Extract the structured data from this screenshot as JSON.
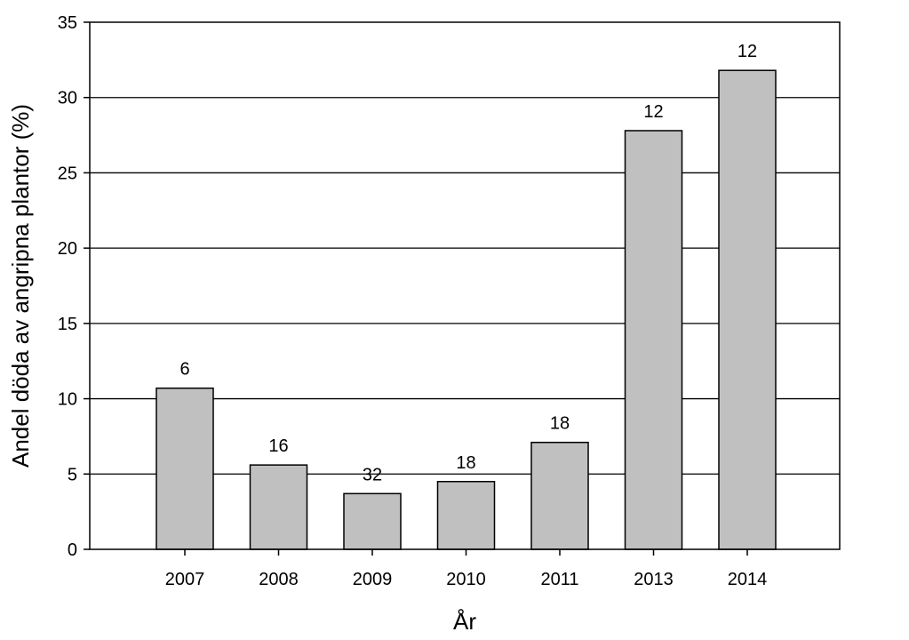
{
  "chart_data": {
    "type": "bar",
    "title": "",
    "xlabel": "År",
    "ylabel": "Andel döda av angripna plantor (%)",
    "categories": [
      "2007",
      "2008",
      "2009",
      "2010",
      "2011",
      "2013",
      "2014"
    ],
    "values": [
      10.7,
      5.6,
      3.7,
      4.5,
      7.1,
      27.8,
      31.8
    ],
    "bar_labels": [
      "6",
      "16",
      "32",
      "18",
      "18",
      "12",
      "12"
    ],
    "ylim": [
      0,
      35
    ],
    "yticks": [
      "0",
      "5",
      "10",
      "15",
      "20",
      "25",
      "30",
      "35"
    ],
    "grid": "horizontal",
    "legend": "none",
    "colors": {
      "bar_fill": "#c0c0c0",
      "bar_stroke": "#000000",
      "grid": "#000000"
    }
  }
}
